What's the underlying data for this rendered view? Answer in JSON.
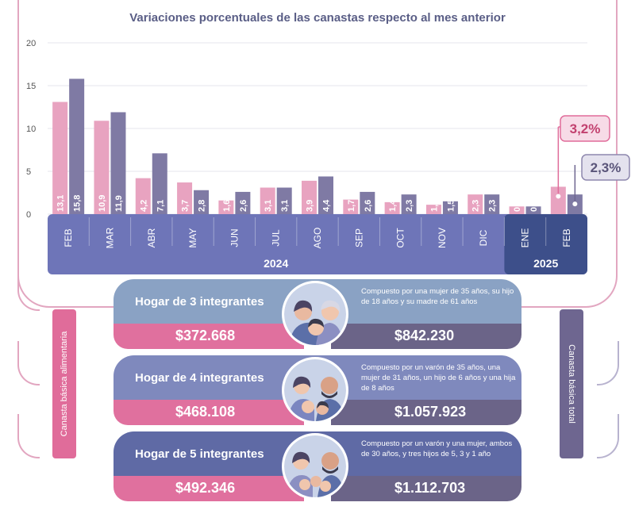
{
  "chart_data": {
    "type": "bar",
    "title": "Variaciones porcentuales de las canastas respecto al mes anterior",
    "ylim": [
      0,
      20
    ],
    "yticks": [
      "0",
      "5",
      "10",
      "15",
      "20"
    ],
    "categories": [
      "FEB",
      "MAR",
      "ABR",
      "MAY",
      "JUN",
      "JUL",
      "AGO",
      "SEP",
      "OCT",
      "NOV",
      "DIC",
      "ENE",
      "FEB"
    ],
    "years": [
      "2024",
      "2025"
    ],
    "series": [
      {
        "values": [
          13.1,
          10.9,
          4.2,
          3.7,
          1.6,
          3.1,
          3.9,
          1.7,
          1.4,
          1.1,
          2.3,
          0.9,
          3.2
        ],
        "labels": [
          "13,1",
          "10,9",
          "4,2",
          "3,7",
          "1,6",
          "3,1",
          "3,9",
          "1,7",
          "1,4",
          "1,1",
          "2,3",
          "0,9",
          ""
        ],
        "color": "#e8a3c0"
      },
      {
        "values": [
          15.8,
          11.9,
          7.1,
          2.8,
          2.6,
          3.1,
          4.4,
          2.6,
          2.3,
          1.5,
          2.3,
          0.9,
          2.3
        ],
        "labels": [
          "15,8",
          "11,9",
          "7,1",
          "2,8",
          "2,6",
          "3,1",
          "4,4",
          "2,6",
          "2,3",
          "1,5",
          "2,3",
          "0,9",
          ""
        ],
        "color": "#7f7aa4"
      }
    ],
    "callouts": [
      "3,2%",
      "2,3%"
    ],
    "grid": true
  },
  "side_labels": {
    "left": "Canasta básica alimentaria",
    "right": "Canasta básica total"
  },
  "cards": [
    {
      "label": "Hogar de 3 integrantes",
      "desc": "Compuesto por una mujer de 35 años, su hijo de 18 años y su madre de 61 años",
      "cba": "$372.668",
      "cbt": "$842.230"
    },
    {
      "label": "Hogar de 4 integrantes",
      "desc": "Compuesto por un varón de 35 años, una mujer de 31 años, un hijo de 6 años y una hija de 8 años",
      "cba": "$468.108",
      "cbt": "$1.057.923"
    },
    {
      "label": "Hogar de 5 integrantes",
      "desc": "Compuesto por un varón y una mujer, ambos de 30 años, y tres hijos de 5, 3 y 1 año",
      "cba": "$492.346",
      "cbt": "$1.112.703"
    }
  ],
  "colors": {
    "pink": "#e0709e",
    "purple": "#6b6488",
    "band": "#6e75b8",
    "band_2025": "#3d4f8a"
  }
}
